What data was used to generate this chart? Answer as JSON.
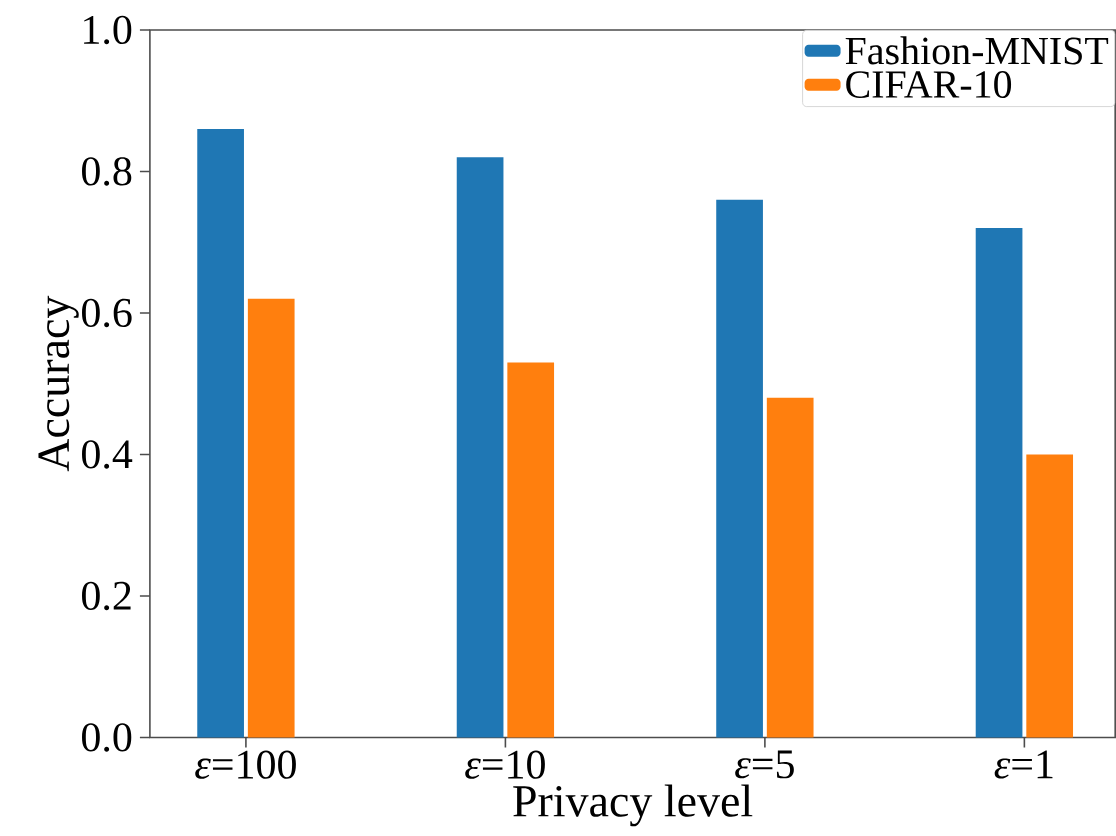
{
  "chart_data": {
    "type": "bar",
    "xlabel": "Privacy level",
    "ylabel": "Accuracy",
    "categories": [
      "*ε*=100",
      "*ε*=10",
      "*ε*=5",
      "*ε*=1"
    ],
    "series": [
      {
        "name": "Fashion-MNIST",
        "color": "#1f77b4",
        "values": [
          0.86,
          0.82,
          0.76,
          0.72
        ]
      },
      {
        "name": "CIFAR-10",
        "color": "#ff7f0e",
        "values": [
          0.62,
          0.53,
          0.48,
          0.4
        ]
      }
    ],
    "ylim": [
      0,
      1
    ],
    "yticks": [
      {
        "value": 0,
        "label": "0.0"
      },
      {
        "value": 0.2,
        "label": "0.2"
      },
      {
        "value": 0.4,
        "label": "0.4"
      },
      {
        "value": 0.6,
        "label": "0.6"
      },
      {
        "value": 0.8,
        "label": "0.8"
      },
      {
        "value": 1,
        "label": "1.0"
      }
    ],
    "legend": "top right",
    "grid": false
  }
}
